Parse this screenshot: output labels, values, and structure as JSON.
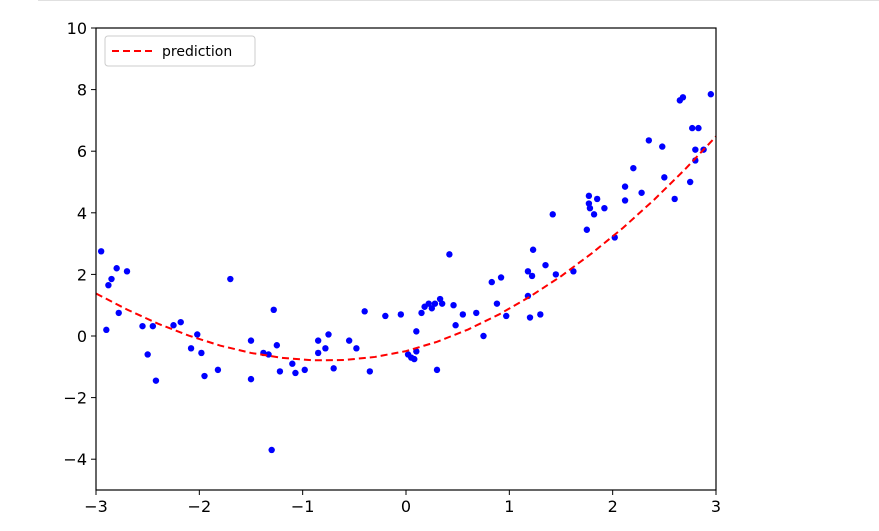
{
  "chart_data": {
    "type": "scatter",
    "title": "",
    "xlabel": "",
    "ylabel": "",
    "xlim": [
      -3,
      3
    ],
    "ylim": [
      -5,
      10
    ],
    "xticks": [
      -3,
      -2,
      -1,
      0,
      1,
      2,
      3
    ],
    "yticks": [
      -4,
      -2,
      0,
      2,
      4,
      6,
      8,
      10
    ],
    "xtick_labels": [
      "−3",
      "−2",
      "−1",
      "0",
      "1",
      "2",
      "3"
    ],
    "ytick_labels": [
      "−4",
      "−2",
      "0",
      "2",
      "4",
      "6",
      "8",
      "10"
    ],
    "grid": false,
    "legend": {
      "placement": "top-left",
      "entries": [
        "prediction"
      ]
    },
    "series": [
      {
        "kind": "scatter",
        "color": "#0000ff",
        "points": [
          [
            -2.95,
            2.75
          ],
          [
            -2.9,
            0.2
          ],
          [
            -2.88,
            1.65
          ],
          [
            -2.85,
            1.85
          ],
          [
            -2.8,
            2.2
          ],
          [
            -2.78,
            0.75
          ],
          [
            -2.7,
            2.1
          ],
          [
            -2.55,
            0.32
          ],
          [
            -2.5,
            -0.6
          ],
          [
            -2.45,
            0.32
          ],
          [
            -2.42,
            -1.45
          ],
          [
            -2.25,
            0.35
          ],
          [
            -2.18,
            0.45
          ],
          [
            -2.08,
            -0.4
          ],
          [
            -2.02,
            0.05
          ],
          [
            -1.98,
            -0.55
          ],
          [
            -1.95,
            -1.3
          ],
          [
            -1.82,
            -1.1
          ],
          [
            -1.7,
            1.85
          ],
          [
            -1.5,
            -0.15
          ],
          [
            -1.5,
            -1.4
          ],
          [
            -1.38,
            -0.55
          ],
          [
            -1.33,
            -0.6
          ],
          [
            -1.3,
            -3.7
          ],
          [
            -1.28,
            0.85
          ],
          [
            -1.25,
            -0.3
          ],
          [
            -1.22,
            -1.15
          ],
          [
            -1.1,
            -0.9
          ],
          [
            -1.07,
            -1.2
          ],
          [
            -0.98,
            -1.1
          ],
          [
            -0.85,
            -0.15
          ],
          [
            -0.85,
            -0.55
          ],
          [
            -0.78,
            -0.4
          ],
          [
            -0.75,
            0.05
          ],
          [
            -0.7,
            -1.05
          ],
          [
            -0.55,
            -0.15
          ],
          [
            -0.48,
            -0.4
          ],
          [
            -0.4,
            0.8
          ],
          [
            -0.35,
            -1.15
          ],
          [
            -0.2,
            0.65
          ],
          [
            -0.05,
            0.7
          ],
          [
            0.02,
            -0.6
          ],
          [
            0.05,
            -0.7
          ],
          [
            0.08,
            -0.75
          ],
          [
            0.1,
            -0.5
          ],
          [
            0.1,
            0.15
          ],
          [
            0.15,
            0.75
          ],
          [
            0.18,
            0.95
          ],
          [
            0.22,
            1.05
          ],
          [
            0.25,
            0.9
          ],
          [
            0.28,
            1.05
          ],
          [
            0.3,
            -1.1
          ],
          [
            0.33,
            1.2
          ],
          [
            0.35,
            1.05
          ],
          [
            0.42,
            2.65
          ],
          [
            0.46,
            1.0
          ],
          [
            0.48,
            0.35
          ],
          [
            0.55,
            0.7
          ],
          [
            0.68,
            0.75
          ],
          [
            0.75,
            0.0
          ],
          [
            0.83,
            1.75
          ],
          [
            0.88,
            1.05
          ],
          [
            0.92,
            1.9
          ],
          [
            0.97,
            0.65
          ],
          [
            1.18,
            1.3
          ],
          [
            1.18,
            2.1
          ],
          [
            1.2,
            0.6
          ],
          [
            1.22,
            1.95
          ],
          [
            1.23,
            2.8
          ],
          [
            1.3,
            0.7
          ],
          [
            1.35,
            2.3
          ],
          [
            1.42,
            3.95
          ],
          [
            1.45,
            2.0
          ],
          [
            1.62,
            2.1
          ],
          [
            1.75,
            3.45
          ],
          [
            1.77,
            4.55
          ],
          [
            1.77,
            4.3
          ],
          [
            1.78,
            4.15
          ],
          [
            1.82,
            3.95
          ],
          [
            1.85,
            4.45
          ],
          [
            1.92,
            4.15
          ],
          [
            2.02,
            3.2
          ],
          [
            2.12,
            4.85
          ],
          [
            2.12,
            4.4
          ],
          [
            2.2,
            5.45
          ],
          [
            2.28,
            4.65
          ],
          [
            2.35,
            6.35
          ],
          [
            2.48,
            6.15
          ],
          [
            2.5,
            5.15
          ],
          [
            2.6,
            4.45
          ],
          [
            2.65,
            7.65
          ],
          [
            2.68,
            7.75
          ],
          [
            2.75,
            5.0
          ],
          [
            2.77,
            6.75
          ],
          [
            2.8,
            5.7
          ],
          [
            2.8,
            6.05
          ],
          [
            2.83,
            6.75
          ],
          [
            2.88,
            6.05
          ],
          [
            2.95,
            7.85
          ]
        ]
      },
      {
        "kind": "line",
        "name": "prediction",
        "color": "#ff0000",
        "style": "dashed",
        "x": [
          -3.0,
          -2.7,
          -2.4,
          -2.1,
          -1.8,
          -1.5,
          -1.2,
          -0.9,
          -0.6,
          -0.3,
          0.0,
          0.3,
          0.6,
          0.9,
          1.2,
          1.5,
          1.8,
          2.1,
          2.4,
          2.7,
          3.0
        ],
        "y": [
          1.38,
          0.86,
          0.4,
          0.01,
          -0.31,
          -0.55,
          -0.71,
          -0.79,
          -0.78,
          -0.68,
          -0.49,
          -0.19,
          0.21,
          0.7,
          1.28,
          1.94,
          2.69,
          3.51,
          4.42,
          5.41,
          6.48
        ]
      }
    ]
  }
}
